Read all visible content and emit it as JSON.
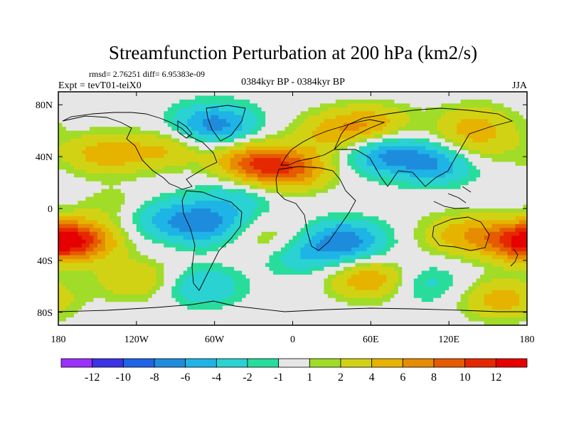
{
  "chart_data": {
    "type": "heatmap",
    "title": "Streamfunction Perturbation at 200 hPa (km2/s)",
    "stats_line": "rmsd= 2.76251 diff= 6.95383e-09",
    "expt_label": "Expt = tevT01-teiX0",
    "period_label": "0384kyr BP - 0384kyr BP",
    "season_label": "JJA",
    "x_ticks": [
      "180",
      "120W",
      "60W",
      "0",
      "60E",
      "120E",
      "180"
    ],
    "x_tick_values": [
      -180,
      -120,
      -60,
      0,
      60,
      120,
      180
    ],
    "y_ticks": [
      "80N",
      "40N",
      "0",
      "40S",
      "80S"
    ],
    "y_tick_values": [
      80,
      40,
      0,
      -40,
      -80
    ],
    "xlim": [
      -180,
      180
    ],
    "ylim": [
      -90,
      90
    ],
    "colorbar": {
      "labels": [
        "-12",
        "-10",
        "-8",
        "-6",
        "-4",
        "-2",
        "-1",
        "1",
        "2",
        "4",
        "6",
        "8",
        "10",
        "12"
      ],
      "levels": [
        -12,
        -10,
        -8,
        -6,
        -4,
        -2,
        -1,
        1,
        2,
        4,
        6,
        8,
        10,
        12
      ],
      "colors": [
        "#9b30ff",
        "#3c32e6",
        "#1e64e6",
        "#1e8cdc",
        "#1eb4e6",
        "#2ad2d2",
        "#28dc9c",
        "#e6e6e6",
        "#a0dc28",
        "#d2d214",
        "#e6b400",
        "#e68c00",
        "#e65a00",
        "#e62800",
        "#e60000"
      ]
    },
    "anomalies": [
      {
        "lon": -95,
        "lat": 43,
        "amp": 6.5
      },
      {
        "lon": -30,
        "lat": 35,
        "amp": 8
      },
      {
        "lon": 0,
        "lat": 30,
        "amp": 7
      },
      {
        "lon": -145,
        "lat": 42,
        "amp": 5
      },
      {
        "lon": -60,
        "lat": 65,
        "amp": -7
      },
      {
        "lon": 30,
        "lat": 58,
        "amp": 4
      },
      {
        "lon": 60,
        "lat": 65,
        "amp": 5
      },
      {
        "lon": 140,
        "lat": 65,
        "amp": 4
      },
      {
        "lon": 140,
        "lat": 48,
        "amp": 3
      },
      {
        "lon": 70,
        "lat": 42,
        "amp": -6
      },
      {
        "lon": 110,
        "lat": 35,
        "amp": -6
      },
      {
        "lon": -90,
        "lat": 40,
        "amp": -3
      },
      {
        "lon": -45,
        "lat": 8,
        "amp": -3
      },
      {
        "lon": -130,
        "lat": 0,
        "amp": 3
      },
      {
        "lon": -70,
        "lat": -12,
        "amp": -7
      },
      {
        "lon": -110,
        "lat": -5,
        "amp": -4
      },
      {
        "lon": -15,
        "lat": -25,
        "amp": 3
      },
      {
        "lon": 40,
        "lat": -25,
        "amp": -7
      },
      {
        "lon": 5,
        "lat": -35,
        "amp": -4
      },
      {
        "lon": -165,
        "lat": -25,
        "amp": 8
      },
      {
        "lon": 175,
        "lat": -25,
        "amp": 8
      },
      {
        "lon": 130,
        "lat": -20,
        "amp": 5
      },
      {
        "lon": 60,
        "lat": -55,
        "amp": 6
      },
      {
        "lon": -120,
        "lat": -55,
        "amp": 4
      },
      {
        "lon": -70,
        "lat": -60,
        "amp": -4
      },
      {
        "lon": 100,
        "lat": -58,
        "amp": -3
      },
      {
        "lon": 160,
        "lat": -70,
        "amp": 5
      }
    ]
  }
}
